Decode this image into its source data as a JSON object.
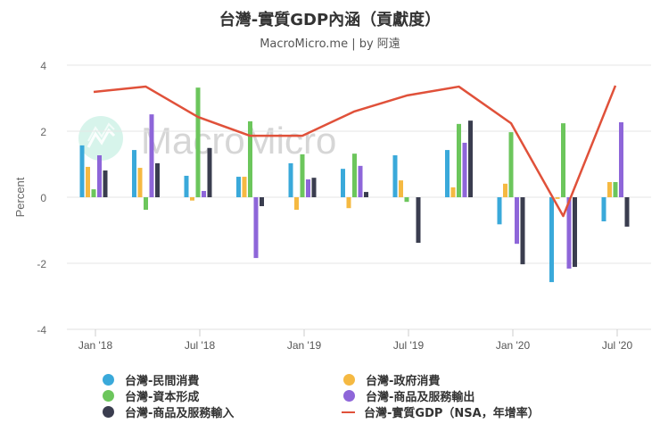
{
  "header": {
    "title": "台灣-實質GDP內涵（貢獻度）",
    "subtitle": "MacroMicro.me | by 阿遠",
    "watermark": "MacroMicro"
  },
  "chart_data": {
    "type": "bar",
    "title": "台灣-實質GDP內涵（貢獻度）",
    "subtitle": "MacroMicro.me | by 阿遠",
    "xlabel": "",
    "ylabel": "Percent",
    "ylim": [
      -4,
      4
    ],
    "yticks": [
      4,
      2,
      0,
      -2,
      -4
    ],
    "grid": true,
    "legend_position": "bottom",
    "x_tick_labels": [
      "Jan '18",
      "Jul '18",
      "Jan '19",
      "Jul '19",
      "Jan '20",
      "Jul '20"
    ],
    "categories": [
      "2018Q1",
      "2018Q2",
      "2018Q3",
      "2018Q4",
      "2019Q1",
      "2019Q2",
      "2019Q3",
      "2019Q4",
      "2020Q1",
      "2020Q2",
      "2020Q3"
    ],
    "series": [
      {
        "name": "台灣-民間消費",
        "type": "bar",
        "color": "#3aa9da",
        "values": [
          1.57,
          1.43,
          0.65,
          0.62,
          1.03,
          0.86,
          1.27,
          1.43,
          -0.82,
          -2.57,
          -0.73
        ]
      },
      {
        "name": "台灣-政府消費",
        "type": "bar",
        "color": "#f5b942",
        "values": [
          0.92,
          0.89,
          -0.1,
          0.62,
          -0.38,
          -0.33,
          0.51,
          0.3,
          0.41,
          -0.05,
          0.46
        ]
      },
      {
        "name": "台灣-資本形成",
        "type": "bar",
        "color": "#6cc65c",
        "values": [
          0.24,
          -0.38,
          3.32,
          2.3,
          1.3,
          1.32,
          -0.14,
          2.22,
          1.97,
          2.24,
          0.46
        ]
      },
      {
        "name": "台灣-商品及服務輸出",
        "type": "bar",
        "color": "#8e66d9",
        "values": [
          1.27,
          2.51,
          0.19,
          -1.84,
          0.54,
          0.95,
          0.0,
          1.65,
          -1.41,
          -2.16,
          2.27
        ]
      },
      {
        "name": "台灣-商品及服務輸入",
        "type": "bar",
        "color": "#3a3d4f",
        "values": [
          0.81,
          1.03,
          1.49,
          -0.27,
          0.59,
          0.16,
          -1.38,
          2.32,
          -2.03,
          -2.11,
          -0.89
        ]
      },
      {
        "name": "台灣-實質GDP（NSA，年增率）",
        "type": "line",
        "color": "#e0513a",
        "values": [
          3.19,
          3.35,
          2.43,
          1.86,
          1.86,
          2.6,
          3.08,
          3.35,
          2.24,
          -0.57,
          3.38
        ]
      }
    ]
  },
  "legend": {
    "items": [
      {
        "label": "台灣-民間消費",
        "color": "#3aa9da",
        "symbol": "dot"
      },
      {
        "label": "台灣-政府消費",
        "color": "#f5b942",
        "symbol": "dot"
      },
      {
        "label": "台灣-資本形成",
        "color": "#6cc65c",
        "symbol": "dot"
      },
      {
        "label": "台灣-商品及服務輸出",
        "color": "#8e66d9",
        "symbol": "dot"
      },
      {
        "label": "台灣-商品及服務輸入",
        "color": "#3a3d4f",
        "symbol": "dot"
      },
      {
        "label": "台灣-實質GDP（NSA，年增率）",
        "color": "#e0513a",
        "symbol": "line"
      }
    ]
  }
}
